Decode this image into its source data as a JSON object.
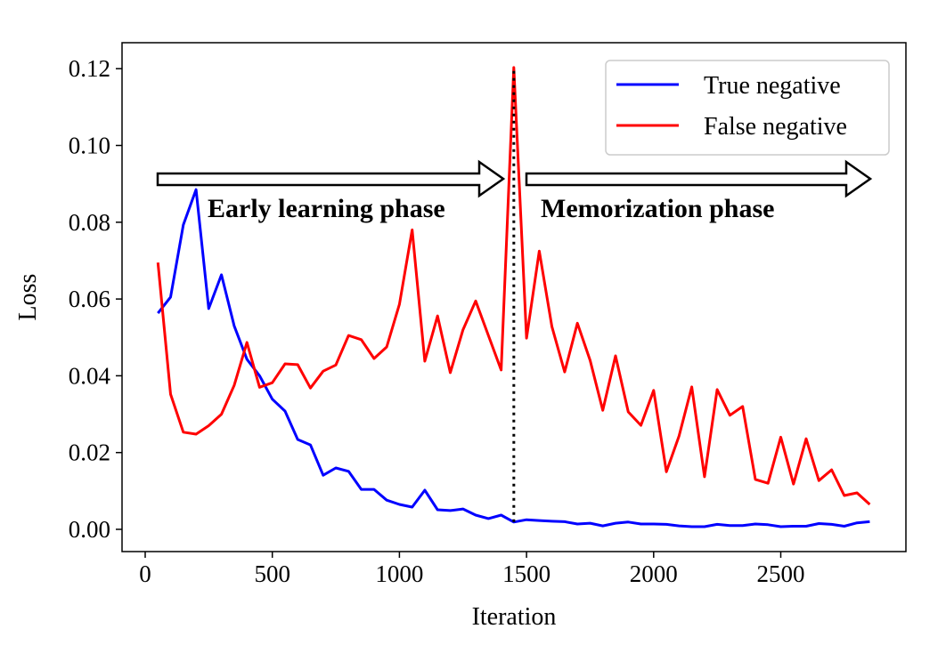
{
  "chart_data": {
    "type": "line",
    "title": "",
    "xlabel": "Iteration",
    "ylabel": "Loss",
    "xlim": [
      -90,
      2990
    ],
    "ylim": [
      -0.006,
      0.127
    ],
    "xticks": [
      0,
      500,
      1000,
      1500,
      2000,
      2500
    ],
    "xtick_labels": [
      "0",
      "500",
      "1000",
      "1500",
      "2000",
      "2500"
    ],
    "yticks": [
      0,
      0.02,
      0.04,
      0.06,
      0.08,
      0.1,
      0.12
    ],
    "ytick_labels": [
      "0.00",
      "0.02",
      "0.04",
      "0.06",
      "0.08",
      "0.10",
      "0.12"
    ],
    "legend_position": "top-right",
    "x": [
      50,
      100,
      150,
      200,
      250,
      300,
      350,
      400,
      450,
      500,
      550,
      600,
      650,
      700,
      750,
      800,
      850,
      900,
      950,
      1000,
      1050,
      1100,
      1150,
      1200,
      1250,
      1300,
      1350,
      1400,
      1450,
      1500,
      1550,
      1600,
      1650,
      1700,
      1750,
      1800,
      1850,
      1900,
      1950,
      2000,
      2050,
      2100,
      2150,
      2200,
      2250,
      2300,
      2350,
      2400,
      2450,
      2500,
      2550,
      2600,
      2650,
      2700,
      2750,
      2800,
      2850
    ],
    "series": [
      {
        "name": "True negative",
        "color": "#0000ff",
        "values": [
          0.0563,
          0.0605,
          0.0793,
          0.0885,
          0.0575,
          0.0663,
          0.053,
          0.0443,
          0.04,
          0.0339,
          0.0308,
          0.0234,
          0.022,
          0.0141,
          0.016,
          0.0151,
          0.0104,
          0.0104,
          0.0076,
          0.0065,
          0.0058,
          0.0102,
          0.0051,
          0.0049,
          0.0053,
          0.0037,
          0.0028,
          0.0037,
          0.0019,
          0.0025,
          0.0023,
          0.0021,
          0.002,
          0.0014,
          0.0016,
          0.0009,
          0.0016,
          0.0019,
          0.0014,
          0.0014,
          0.0013,
          0.0009,
          0.0007,
          0.0007,
          0.0013,
          0.001,
          0.001,
          0.0014,
          0.0012,
          0.0007,
          0.0008,
          0.0008,
          0.0015,
          0.0013,
          0.0008,
          0.0017,
          0.002
        ]
      },
      {
        "name": "False negative",
        "color": "#ff0000",
        "values": [
          0.0695,
          0.0352,
          0.0253,
          0.0248,
          0.027,
          0.03,
          0.0375,
          0.0487,
          0.037,
          0.0382,
          0.0431,
          0.0429,
          0.0368,
          0.0412,
          0.0428,
          0.0505,
          0.0494,
          0.0445,
          0.0475,
          0.0586,
          0.078,
          0.0438,
          0.0556,
          0.0408,
          0.052,
          0.0595,
          0.0505,
          0.0415,
          0.1203,
          0.0498,
          0.0725,
          0.0528,
          0.041,
          0.0537,
          0.044,
          0.031,
          0.0452,
          0.0306,
          0.0271,
          0.0362,
          0.015,
          0.0243,
          0.0371,
          0.0137,
          0.0364,
          0.0297,
          0.032,
          0.013,
          0.012,
          0.024,
          0.0118,
          0.0236,
          0.0127,
          0.0155,
          0.0088,
          0.0095,
          0.0065
        ]
      }
    ],
    "annotations": {
      "phase_split_x": 1450,
      "early_label": "Early learning phase",
      "memo_label": "Memorization phase"
    }
  }
}
